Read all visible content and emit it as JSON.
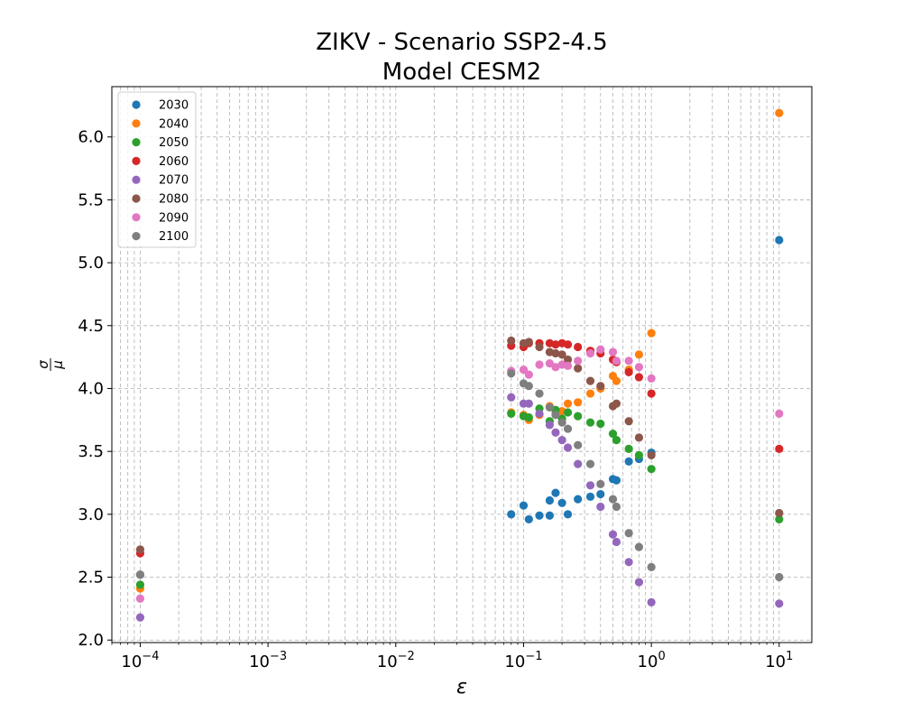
{
  "chart_data": {
    "type": "scatter",
    "title": "ZIKV - Scenario SSP2-4.5",
    "subtitle": "Model CESM2",
    "xlabel": "ε",
    "ylabel_numerator": "σ",
    "ylabel_denominator": "μ",
    "xscale": "log",
    "xlim": [
      6e-05,
      18
    ],
    "ylim": [
      1.98,
      6.4
    ],
    "x_ticks": [
      {
        "value": 0.0001,
        "base": "10",
        "exp": "−4"
      },
      {
        "value": 0.001,
        "base": "10",
        "exp": "−3"
      },
      {
        "value": 0.01,
        "base": "10",
        "exp": "−2"
      },
      {
        "value": 0.1,
        "base": "10",
        "exp": "−1"
      },
      {
        "value": 1,
        "base": "10",
        "exp": "0"
      },
      {
        "value": 10,
        "base": "10",
        "exp": "1"
      }
    ],
    "y_ticks": [
      {
        "value": 2.0,
        "label": "2.0"
      },
      {
        "value": 2.5,
        "label": "2.5"
      },
      {
        "value": 3.0,
        "label": "3.0"
      },
      {
        "value": 3.5,
        "label": "3.5"
      },
      {
        "value": 4.0,
        "label": "4.0"
      },
      {
        "value": 4.5,
        "label": "4.5"
      },
      {
        "value": 5.0,
        "label": "5.0"
      },
      {
        "value": 5.5,
        "label": "5.5"
      },
      {
        "value": 6.0,
        "label": "6.0"
      }
    ],
    "grid": true,
    "legend_position": "top-left",
    "series": [
      {
        "name": "2030",
        "color": "#1f77b4",
        "points": [
          [
            0.0001,
            2.52
          ],
          [
            0.08,
            3.0
          ],
          [
            0.1,
            3.07
          ],
          [
            0.11,
            2.96
          ],
          [
            0.133,
            2.99
          ],
          [
            0.16,
            2.99
          ],
          [
            0.16,
            3.11
          ],
          [
            0.178,
            3.17
          ],
          [
            0.2,
            3.09
          ],
          [
            0.222,
            3.0
          ],
          [
            0.266,
            3.12
          ],
          [
            0.333,
            3.14
          ],
          [
            0.4,
            3.16
          ],
          [
            0.5,
            3.28
          ],
          [
            0.533,
            3.27
          ],
          [
            0.666,
            3.42
          ],
          [
            0.8,
            3.44
          ],
          [
            1.0,
            3.49
          ],
          [
            10,
            5.18
          ]
        ]
      },
      {
        "name": "2040",
        "color": "#ff7f0e",
        "points": [
          [
            0.0001,
            2.41
          ],
          [
            0.08,
            3.81
          ],
          [
            0.1,
            3.79
          ],
          [
            0.11,
            3.75
          ],
          [
            0.133,
            3.79
          ],
          [
            0.16,
            3.86
          ],
          [
            0.178,
            3.81
          ],
          [
            0.2,
            3.82
          ],
          [
            0.222,
            3.88
          ],
          [
            0.266,
            3.89
          ],
          [
            0.333,
            3.96
          ],
          [
            0.4,
            4.0
          ],
          [
            0.5,
            4.1
          ],
          [
            0.533,
            4.06
          ],
          [
            0.666,
            4.15
          ],
          [
            0.8,
            4.27
          ],
          [
            1.0,
            4.44
          ],
          [
            10,
            6.19
          ]
        ]
      },
      {
        "name": "2050",
        "color": "#2ca02c",
        "points": [
          [
            0.0001,
            2.44
          ],
          [
            0.08,
            3.8
          ],
          [
            0.1,
            3.78
          ],
          [
            0.11,
            3.77
          ],
          [
            0.133,
            3.84
          ],
          [
            0.16,
            3.74
          ],
          [
            0.178,
            3.83
          ],
          [
            0.2,
            3.76
          ],
          [
            0.222,
            3.81
          ],
          [
            0.266,
            3.78
          ],
          [
            0.333,
            3.73
          ],
          [
            0.4,
            3.72
          ],
          [
            0.5,
            3.64
          ],
          [
            0.533,
            3.59
          ],
          [
            0.666,
            3.52
          ],
          [
            0.8,
            3.47
          ],
          [
            1.0,
            3.36
          ],
          [
            10,
            2.96
          ]
        ]
      },
      {
        "name": "2060",
        "color": "#d62728",
        "points": [
          [
            0.0001,
            2.69
          ],
          [
            0.08,
            4.34
          ],
          [
            0.1,
            4.33
          ],
          [
            0.11,
            4.36
          ],
          [
            0.133,
            4.36
          ],
          [
            0.16,
            4.36
          ],
          [
            0.178,
            4.35
          ],
          [
            0.2,
            4.36
          ],
          [
            0.222,
            4.35
          ],
          [
            0.266,
            4.33
          ],
          [
            0.333,
            4.3
          ],
          [
            0.4,
            4.28
          ],
          [
            0.5,
            4.23
          ],
          [
            0.533,
            4.21
          ],
          [
            0.666,
            4.13
          ],
          [
            0.8,
            4.09
          ],
          [
            1.0,
            3.96
          ],
          [
            10,
            3.52
          ]
        ]
      },
      {
        "name": "2070",
        "color": "#9467bd",
        "points": [
          [
            0.0001,
            2.18
          ],
          [
            0.08,
            3.93
          ],
          [
            0.1,
            3.88
          ],
          [
            0.11,
            3.88
          ],
          [
            0.133,
            3.8
          ],
          [
            0.16,
            3.71
          ],
          [
            0.178,
            3.65
          ],
          [
            0.2,
            3.59
          ],
          [
            0.222,
            3.53
          ],
          [
            0.266,
            3.4
          ],
          [
            0.333,
            3.23
          ],
          [
            0.4,
            3.06
          ],
          [
            0.5,
            2.84
          ],
          [
            0.533,
            2.78
          ],
          [
            0.666,
            2.62
          ],
          [
            0.8,
            2.46
          ],
          [
            1.0,
            2.3
          ],
          [
            10,
            2.29
          ]
        ]
      },
      {
        "name": "2080",
        "color": "#8c564b",
        "points": [
          [
            0.0001,
            2.72
          ],
          [
            0.08,
            4.38
          ],
          [
            0.1,
            4.36
          ],
          [
            0.11,
            4.37
          ],
          [
            0.133,
            4.33
          ],
          [
            0.16,
            4.29
          ],
          [
            0.178,
            4.28
          ],
          [
            0.2,
            4.27
          ],
          [
            0.222,
            4.23
          ],
          [
            0.266,
            4.16
          ],
          [
            0.333,
            4.06
          ],
          [
            0.4,
            4.02
          ],
          [
            0.5,
            3.86
          ],
          [
            0.533,
            3.88
          ],
          [
            0.666,
            3.74
          ],
          [
            0.8,
            3.61
          ],
          [
            1.0,
            3.47
          ],
          [
            10,
            3.01
          ]
        ]
      },
      {
        "name": "2090",
        "color": "#e377c2",
        "points": [
          [
            0.0001,
            2.33
          ],
          [
            0.08,
            4.14
          ],
          [
            0.1,
            4.15
          ],
          [
            0.11,
            4.11
          ],
          [
            0.133,
            4.19
          ],
          [
            0.16,
            4.2
          ],
          [
            0.178,
            4.17
          ],
          [
            0.2,
            4.19
          ],
          [
            0.222,
            4.18
          ],
          [
            0.266,
            4.22
          ],
          [
            0.333,
            4.28
          ],
          [
            0.4,
            4.31
          ],
          [
            0.5,
            4.29
          ],
          [
            0.533,
            4.22
          ],
          [
            0.666,
            4.22
          ],
          [
            0.8,
            4.17
          ],
          [
            1.0,
            4.08
          ],
          [
            10,
            3.8
          ]
        ]
      },
      {
        "name": "2100",
        "color": "#7f7f7f",
        "points": [
          [
            0.0001,
            2.52
          ],
          [
            0.08,
            4.12
          ],
          [
            0.1,
            4.04
          ],
          [
            0.11,
            4.02
          ],
          [
            0.133,
            3.96
          ],
          [
            0.16,
            3.85
          ],
          [
            0.178,
            3.79
          ],
          [
            0.2,
            3.73
          ],
          [
            0.222,
            3.68
          ],
          [
            0.266,
            3.55
          ],
          [
            0.333,
            3.4
          ],
          [
            0.4,
            3.24
          ],
          [
            0.5,
            3.12
          ],
          [
            0.533,
            3.06
          ],
          [
            0.666,
            2.85
          ],
          [
            0.8,
            2.74
          ],
          [
            1.0,
            2.58
          ],
          [
            10,
            2.5
          ]
        ]
      }
    ]
  }
}
